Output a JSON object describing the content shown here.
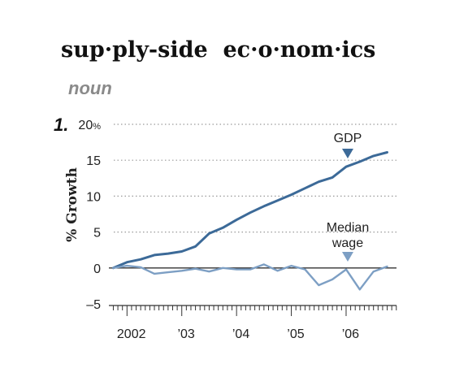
{
  "entry": {
    "headword": "sup·ply-side  ec·o·nom·ics",
    "part_of_speech": "noun",
    "sense_number": "1."
  },
  "colors": {
    "gdp": "#3c6a98",
    "wage": "#7d9fc4",
    "grid": "#9a9a9a",
    "axis": "#333333"
  },
  "chart_data": {
    "type": "line",
    "title": "",
    "xlabel": "",
    "ylabel": "% Growth",
    "ylim": [
      -5,
      20
    ],
    "yticks": [
      20,
      15,
      10,
      5,
      0,
      -5
    ],
    "ytick_labels": [
      "20%",
      "15",
      "10",
      "5",
      "0",
      "–5"
    ],
    "grid": true,
    "xlim": [
      2001.58,
      2006.92
    ],
    "x_tick_labels": [
      {
        "x": 2002.0,
        "label": "2002"
      },
      {
        "x": 2003.0,
        "label": "’03"
      },
      {
        "x": 2004.0,
        "label": "’04"
      },
      {
        "x": 2005.0,
        "label": "’05"
      },
      {
        "x": 2006.0,
        "label": "’06"
      }
    ],
    "series": [
      {
        "name": "GDP",
        "x": [
          2001.75,
          2002.0,
          2002.25,
          2002.5,
          2002.75,
          2003.0,
          2003.25,
          2003.5,
          2003.75,
          2004.0,
          2004.25,
          2004.5,
          2004.75,
          2005.0,
          2005.25,
          2005.5,
          2005.75,
          2006.0,
          2006.25,
          2006.5,
          2006.75
        ],
        "y": [
          0,
          0.8,
          1.2,
          1.8,
          2.0,
          2.3,
          3.0,
          4.8,
          5.6,
          6.7,
          7.7,
          8.6,
          9.4,
          10.2,
          11.1,
          12.0,
          12.6,
          14.1,
          14.8,
          15.6,
          16.1
        ]
      },
      {
        "name": "Median wage",
        "x": [
          2001.75,
          2002.0,
          2002.25,
          2002.5,
          2002.75,
          2003.0,
          2003.25,
          2003.5,
          2003.75,
          2004.0,
          2004.25,
          2004.5,
          2004.75,
          2005.0,
          2005.25,
          2005.5,
          2005.75,
          2006.0,
          2006.25,
          2006.5,
          2006.75
        ],
        "y": [
          0,
          0.3,
          0.1,
          -0.8,
          -0.6,
          -0.4,
          -0.1,
          -0.5,
          0.0,
          -0.2,
          -0.2,
          0.5,
          -0.4,
          0.3,
          -0.2,
          -2.4,
          -1.6,
          -0.2,
          -3.0,
          -0.5,
          0.2
        ]
      }
    ],
    "annotations": [
      {
        "series": "GDP",
        "text": [
          "GDP"
        ],
        "x": 2006.0
      },
      {
        "series": "Median wage",
        "text": [
          "Median",
          "wage"
        ],
        "x": 2006.0
      }
    ]
  }
}
